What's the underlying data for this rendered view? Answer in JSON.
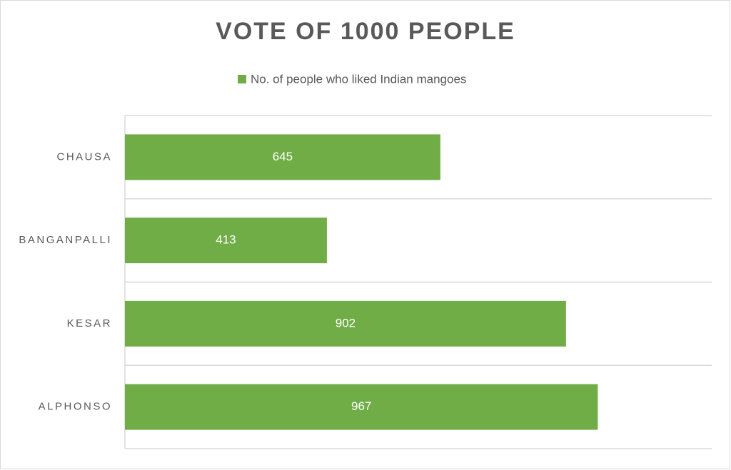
{
  "chart_data": {
    "type": "hbar",
    "title": "VOTE OF 1000 PEOPLE",
    "categories": [
      "CHAUSA",
      "BANGANPALLI",
      "KESAR",
      "ALPHONSO"
    ],
    "series": [
      {
        "name": "No. of people who liked Indian mangoes",
        "color": "#70ad47",
        "values": [
          645,
          413,
          902,
          967
        ]
      }
    ],
    "xlim": [
      0,
      1200
    ],
    "legend": "top",
    "data_labels": true
  }
}
